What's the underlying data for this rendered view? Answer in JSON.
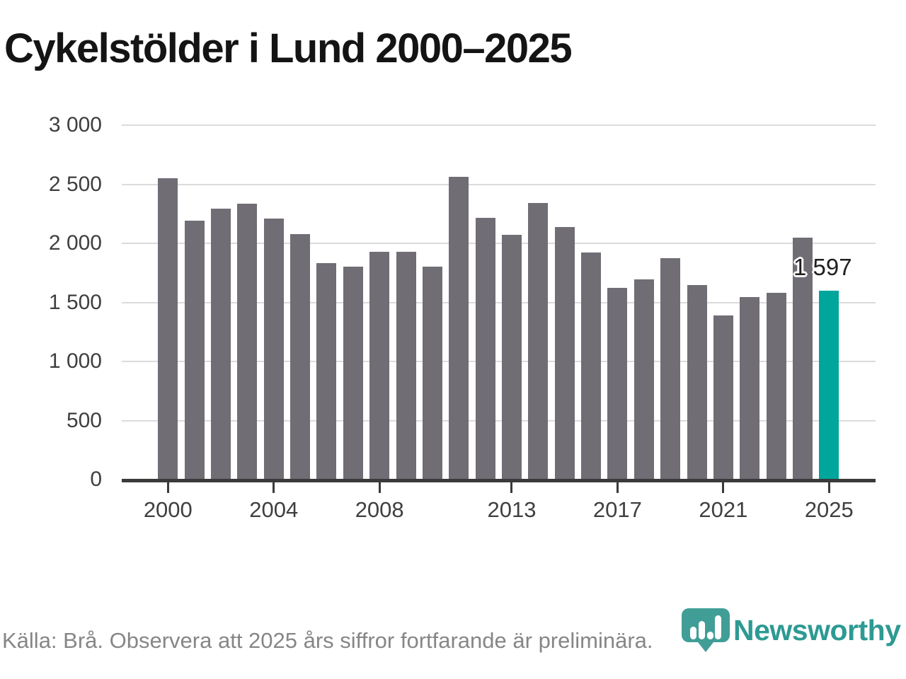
{
  "title": "Cykelstölder i Lund 2000–2025",
  "chart_data": {
    "type": "bar",
    "x": [
      2000,
      2001,
      2002,
      2003,
      2004,
      2005,
      2006,
      2007,
      2008,
      2009,
      2010,
      2011,
      2012,
      2013,
      2014,
      2015,
      2016,
      2017,
      2018,
      2019,
      2020,
      2021,
      2022,
      2023,
      2024,
      2025
    ],
    "values": [
      2550,
      2190,
      2295,
      2335,
      2210,
      2080,
      1830,
      1805,
      1930,
      1930,
      1800,
      2560,
      2215,
      2070,
      2340,
      2140,
      1925,
      1625,
      1695,
      1875,
      1645,
      1390,
      1545,
      1580,
      2045,
      1597
    ],
    "title": "Cykelstölder i Lund 2000–2025",
    "xlabel": "",
    "ylabel": "",
    "ylim": [
      0,
      3000
    ],
    "grid": true,
    "legend_position": "none",
    "highlight_year": 2025,
    "highlight_label": "1 597",
    "yticks": [
      0,
      500,
      1000,
      1500,
      2000,
      2500,
      3000
    ],
    "ytick_labels": [
      "0",
      "500",
      "1 000",
      "1 500",
      "2 000",
      "2 500",
      "3 000"
    ],
    "xtick_years": [
      2000,
      2004,
      2008,
      2013,
      2017,
      2021,
      2025
    ],
    "colors": {
      "bar": "#706D75",
      "highlight_bar": "#00A59C",
      "grid": "#DBDBDB",
      "axis": "#3A3A3A",
      "tick_label": "#3F3F3F",
      "title": "#141414",
      "value_label": "#1F1F1F",
      "source": "#868686",
      "brand": "#2D9A93",
      "logo": "#419E97"
    }
  },
  "footer": {
    "source_text": "Källa: Brå. Observera att 2025 års siffror fortfarande är preliminära.",
    "brand": "Newsworthy"
  }
}
